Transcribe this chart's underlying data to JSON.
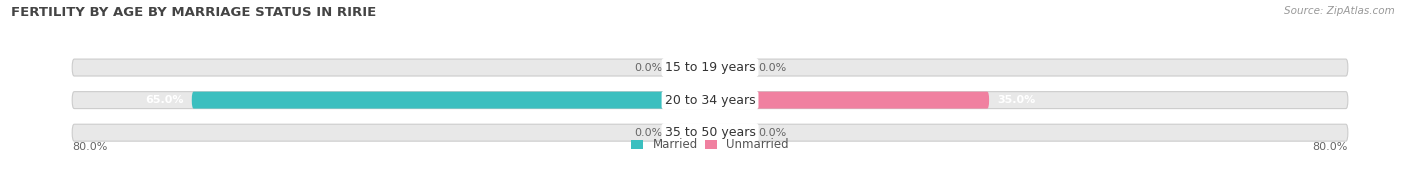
{
  "title": "FERTILITY BY AGE BY MARRIAGE STATUS IN RIRIE",
  "source": "Source: ZipAtlas.com",
  "categories": [
    "15 to 19 years",
    "20 to 34 years",
    "35 to 50 years"
  ],
  "married_values": [
    0.0,
    65.0,
    0.0
  ],
  "unmarried_values": [
    0.0,
    35.0,
    0.0
  ],
  "x_left_label": "80.0%",
  "x_right_label": "80.0%",
  "married_color": "#3bbfbf",
  "unmarried_color": "#f080a0",
  "bar_bg_color": "#e8e8e8",
  "bar_border_color": "#cccccc",
  "title_fontsize": 9.5,
  "source_fontsize": 7.5,
  "value_fontsize": 8,
  "category_fontsize": 9,
  "legend_fontsize": 8.5,
  "bar_height": 0.52,
  "total_width": 80.0,
  "background_color": "#ffffff",
  "small_bar_width": 5.0
}
